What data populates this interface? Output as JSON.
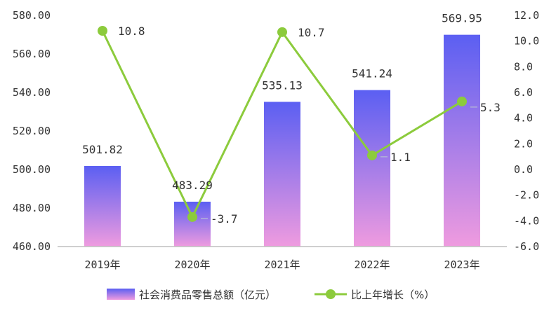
{
  "chart_data": {
    "type": "bar",
    "categories": [
      "2019年",
      "2020年",
      "2021年",
      "2022年",
      "2023年"
    ],
    "series": [
      {
        "name": "社会消费品零售总额（亿元）",
        "type": "bar",
        "axis": "left",
        "values": [
          501.82,
          483.29,
          535.13,
          541.24,
          569.95
        ],
        "labels": [
          "501.82",
          "483.29",
          "535.13",
          "541.24",
          "569.95"
        ]
      },
      {
        "name": "比上年增长（%）",
        "type": "line",
        "axis": "right",
        "values": [
          10.8,
          -3.7,
          10.7,
          1.1,
          5.3
        ],
        "labels": [
          "10.8",
          "-3.7",
          "10.7",
          "1.1",
          "5.3"
        ]
      }
    ],
    "y_left": {
      "lim": [
        460,
        580
      ],
      "ticks": [
        "460.00",
        "480.00",
        "500.00",
        "520.00",
        "540.00",
        "560.00",
        "580.00"
      ]
    },
    "y_right": {
      "lim": [
        -6,
        12
      ],
      "ticks": [
        "-6.0",
        "-4.0",
        "-2.0",
        "0.0",
        "2.0",
        "4.0",
        "6.0",
        "8.0",
        "10.0",
        "12.0"
      ]
    },
    "grid": false,
    "legend": "bottom",
    "colors": {
      "bar_top": "#5b5ff2",
      "bar_bottom": "#ef9bdf",
      "line": "#8ccb3c",
      "axis": "#bfbfbf",
      "leader": "#b0b0d8"
    }
  }
}
